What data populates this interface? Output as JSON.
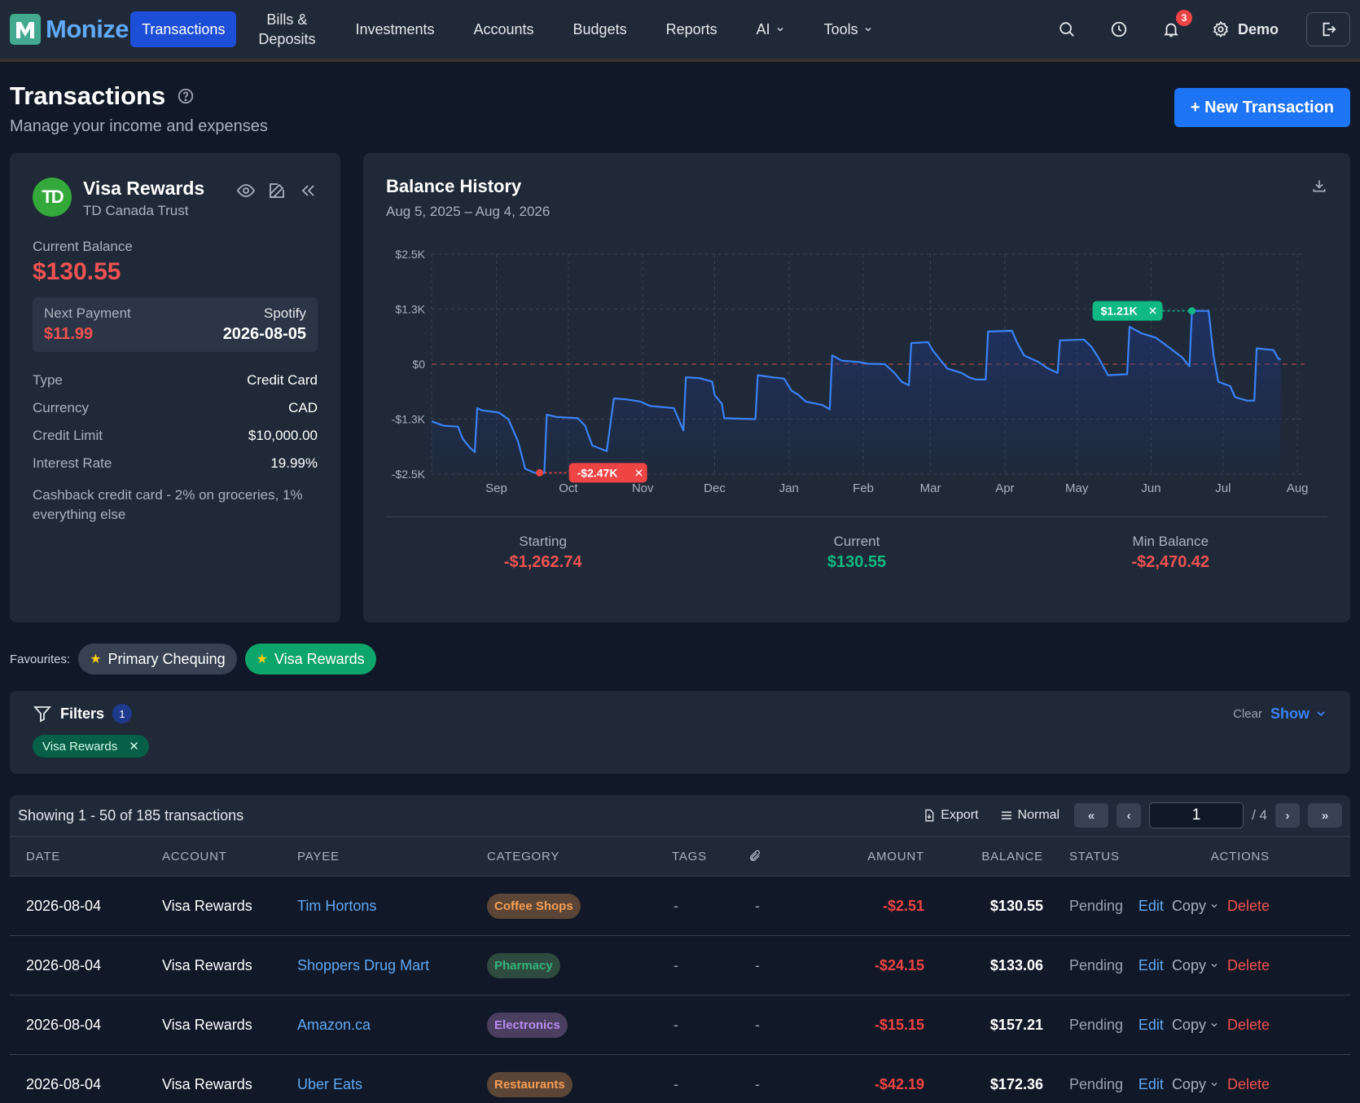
{
  "nav": {
    "brand": "Monize",
    "items": [
      {
        "label": "Transactions",
        "active": true
      },
      {
        "label": "Bills & Deposits",
        "two_line": true
      },
      {
        "label": "Investments"
      },
      {
        "label": "Accounts"
      },
      {
        "label": "Budgets"
      },
      {
        "label": "Reports"
      },
      {
        "label": "AI",
        "dropdown": true
      },
      {
        "label": "Tools",
        "dropdown": true
      }
    ],
    "notifications_count": "3",
    "user": "Demo"
  },
  "header": {
    "title": "Transactions",
    "subtitle": "Manage your income and expenses",
    "new_button": "+ New Transaction"
  },
  "account": {
    "name": "Visa Rewards",
    "bank": "TD Canada Trust",
    "logo_text": "TD",
    "current_balance_label": "Current Balance",
    "current_balance": "$130.55",
    "next_payment_label": "Next Payment",
    "next_payment_amount": "$11.99",
    "next_payment_payee": "Spotify",
    "next_payment_date": "2026-08-05",
    "details": [
      {
        "label": "Type",
        "value": "Credit Card"
      },
      {
        "label": "Currency",
        "value": "CAD"
      },
      {
        "label": "Credit Limit",
        "value": "$10,000.00"
      },
      {
        "label": "Interest Rate",
        "value": "19.99%"
      }
    ],
    "description": "Cashback credit card - 2% on groceries, 1% everything else"
  },
  "balance_history": {
    "title": "Balance History",
    "range": "Aug 5, 2025 – Aug 4, 2026",
    "stats": [
      {
        "label": "Starting",
        "value": "-$1,262.74",
        "color": "#f05252"
      },
      {
        "label": "Current",
        "value": "$130.55",
        "color": "#10b981"
      },
      {
        "label": "Min Balance",
        "value": "-$2,470.42",
        "color": "#f05252"
      }
    ]
  },
  "chart_data": {
    "type": "line",
    "yticks": [
      "$2.5K",
      "$1.3K",
      "$0",
      "-$1.3K",
      "-$2.5K"
    ],
    "ytick_values": [
      2500,
      1250,
      0,
      -1250,
      -2500
    ],
    "ylim": [
      -2500,
      2500
    ],
    "xticks": [
      "Sep",
      "Oct",
      "Nov",
      "Dec",
      "Jan",
      "Feb",
      "Mar",
      "Apr",
      "May",
      "Jun",
      "Jul",
      "Aug"
    ],
    "xtick_days": [
      27,
      57,
      88,
      118,
      149,
      180,
      208,
      239,
      269,
      300,
      330,
      361
    ],
    "total_days": 364,
    "min_label": "-$2.47K",
    "max_label": "$1.21K",
    "colors": {
      "line": "#3b82f6",
      "min": "#ef4444",
      "max": "#10b981",
      "zero": "#b3473f"
    },
    "series": [
      {
        "points": [
          [
            0,
            -1300
          ],
          [
            5,
            -1400
          ],
          [
            11,
            -1420
          ],
          [
            13,
            -1700
          ],
          [
            16,
            -1900
          ],
          [
            18,
            -2000
          ],
          [
            19,
            -1000
          ],
          [
            21,
            -1050
          ],
          [
            28,
            -1100
          ],
          [
            32,
            -1250
          ],
          [
            34,
            -1500
          ],
          [
            36,
            -1750
          ],
          [
            39,
            -2380
          ],
          [
            43,
            -2470
          ],
          [
            47,
            -2470
          ],
          [
            48,
            -1150
          ],
          [
            52,
            -1200
          ],
          [
            61,
            -1230
          ],
          [
            64,
            -1400
          ],
          [
            67,
            -1850
          ],
          [
            73,
            -1980
          ],
          [
            76,
            -780
          ],
          [
            81,
            -800
          ],
          [
            87,
            -850
          ],
          [
            91,
            -950
          ],
          [
            101,
            -1000
          ],
          [
            105,
            -1510
          ],
          [
            106,
            -300
          ],
          [
            112,
            -320
          ],
          [
            117,
            -400
          ],
          [
            118,
            -700
          ],
          [
            121,
            -900
          ],
          [
            122,
            -1230
          ],
          [
            129,
            -1240
          ],
          [
            135,
            -1250
          ],
          [
            136,
            -250
          ],
          [
            142,
            -300
          ],
          [
            147,
            -330
          ],
          [
            150,
            -600
          ],
          [
            153,
            -700
          ],
          [
            156,
            -850
          ],
          [
            163,
            -930
          ],
          [
            166,
            -1030
          ],
          [
            167,
            200
          ],
          [
            171,
            80
          ],
          [
            178,
            50
          ],
          [
            182,
            10
          ],
          [
            189,
            0
          ],
          [
            193,
            -200
          ],
          [
            196,
            -400
          ],
          [
            199,
            -480
          ],
          [
            200,
            480
          ],
          [
            207,
            500
          ],
          [
            209,
            310
          ],
          [
            215,
            -100
          ],
          [
            221,
            -200
          ],
          [
            224,
            -300
          ],
          [
            227,
            -350
          ],
          [
            231,
            -350
          ],
          [
            232,
            740
          ],
          [
            242,
            760
          ],
          [
            244,
            500
          ],
          [
            247,
            200
          ],
          [
            253,
            50
          ],
          [
            257,
            -100
          ],
          [
            261,
            -200
          ],
          [
            262,
            540
          ],
          [
            272,
            560
          ],
          [
            275,
            400
          ],
          [
            278,
            150
          ],
          [
            282,
            -250
          ],
          [
            290,
            -230
          ],
          [
            291,
            850
          ],
          [
            296,
            700
          ],
          [
            302,
            600
          ],
          [
            307,
            400
          ],
          [
            313,
            150
          ],
          [
            316,
            -50
          ],
          [
            317,
            1210
          ],
          [
            324,
            1210
          ],
          [
            326,
            200
          ],
          [
            328,
            -400
          ],
          [
            333,
            -500
          ],
          [
            335,
            -750
          ],
          [
            340,
            -830
          ],
          [
            343,
            -830
          ],
          [
            344,
            360
          ],
          [
            351,
            320
          ],
          [
            353,
            130
          ],
          [
            354,
            100
          ]
        ]
      }
    ]
  },
  "favourites": {
    "label": "Favourites:",
    "items": [
      {
        "label": "Primary Chequing",
        "active": false
      },
      {
        "label": "Visa Rewards",
        "active": true
      }
    ]
  },
  "filters": {
    "title": "Filters",
    "count": "1",
    "clear": "Clear",
    "show": "Show",
    "chips": [
      "Visa Rewards"
    ]
  },
  "table": {
    "showing": "Showing 1 - 50 of 185 transactions",
    "export": "Export",
    "density": "Normal",
    "page": "1",
    "total_pages": "/ 4",
    "columns": [
      "DATE",
      "ACCOUNT",
      "PAYEE",
      "CATEGORY",
      "TAGS",
      "",
      "AMOUNT",
      "BALANCE",
      "STATUS",
      "ACTIONS"
    ],
    "rows": [
      {
        "date": "2026-08-04",
        "account": "Visa Rewards",
        "payee": "Tim Hortons",
        "category": "Coffee Shops",
        "cat_bg": "#5a4536",
        "cat_fg": "#f59e55",
        "tags": "-",
        "attach": "-",
        "amount": "-$2.51",
        "balance": "$130.55",
        "status": "Pending"
      },
      {
        "date": "2026-08-04",
        "account": "Visa Rewards",
        "payee": "Shoppers Drug Mart",
        "category": "Pharmacy",
        "cat_bg": "#2f4a3f",
        "cat_fg": "#34b37a",
        "tags": "-",
        "attach": "-",
        "amount": "-$24.15",
        "balance": "$133.06",
        "status": "Pending"
      },
      {
        "date": "2026-08-04",
        "account": "Visa Rewards",
        "payee": "Amazon.ca",
        "category": "Electronics",
        "cat_bg": "#4a3f5e",
        "cat_fg": "#b98af0",
        "tags": "-",
        "attach": "-",
        "amount": "-$15.15",
        "balance": "$157.21",
        "status": "Pending"
      },
      {
        "date": "2026-08-04",
        "account": "Visa Rewards",
        "payee": "Uber Eats",
        "category": "Restaurants",
        "cat_bg": "#5a4536",
        "cat_fg": "#f59e55",
        "tags": "-",
        "attach": "-",
        "amount": "-$42.19",
        "balance": "$172.36",
        "status": "Pending"
      }
    ],
    "actions": {
      "edit": "Edit",
      "copy": "Copy",
      "delete": "Delete"
    }
  }
}
